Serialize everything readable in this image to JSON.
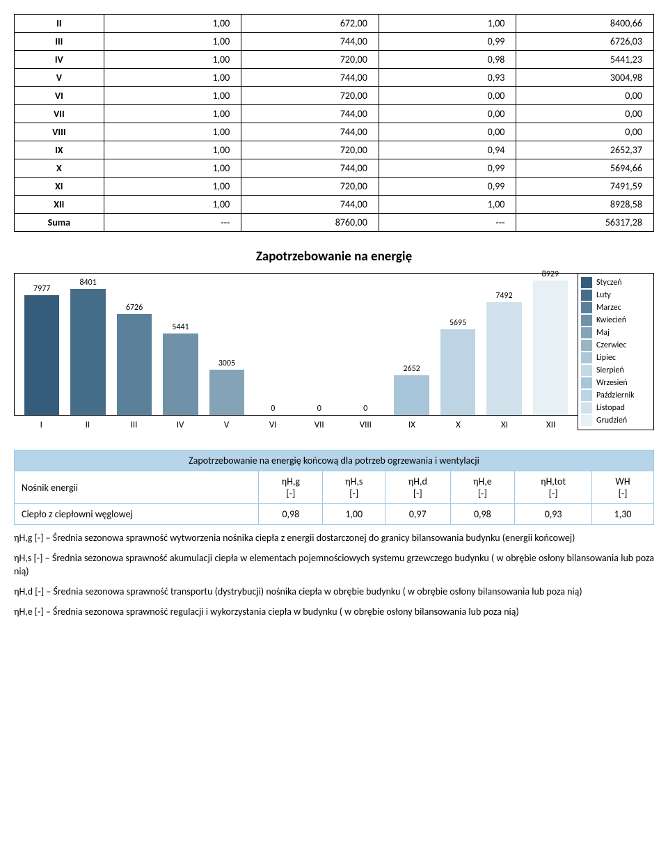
{
  "table1": {
    "rows": [
      {
        "label": "II",
        "c1": "1,00",
        "c2": "672,00",
        "c3": "1,00",
        "c4": "8400,66",
        "bold": true
      },
      {
        "label": "III",
        "c1": "1,00",
        "c2": "744,00",
        "c3": "0,99",
        "c4": "6726,03",
        "bold": true
      },
      {
        "label": "IV",
        "c1": "1,00",
        "c2": "720,00",
        "c3": "0,98",
        "c4": "5441,23",
        "bold": true
      },
      {
        "label": "V",
        "c1": "1,00",
        "c2": "744,00",
        "c3": "0,93",
        "c4": "3004,98",
        "bold": true
      },
      {
        "label": "VI",
        "c1": "1,00",
        "c2": "720,00",
        "c3": "0,00",
        "c4": "0,00",
        "bold": true
      },
      {
        "label": "VII",
        "c1": "1,00",
        "c2": "744,00",
        "c3": "0,00",
        "c4": "0,00",
        "bold": true
      },
      {
        "label": "VIII",
        "c1": "1,00",
        "c2": "744,00",
        "c3": "0,00",
        "c4": "0,00",
        "bold": true
      },
      {
        "label": "IX",
        "c1": "1,00",
        "c2": "720,00",
        "c3": "0,94",
        "c4": "2652,37",
        "bold": true
      },
      {
        "label": "X",
        "c1": "1,00",
        "c2": "744,00",
        "c3": "0,99",
        "c4": "5694,66",
        "bold": true
      },
      {
        "label": "XI",
        "c1": "1,00",
        "c2": "720,00",
        "c3": "0,99",
        "c4": "7491,59",
        "bold": true
      },
      {
        "label": "XII",
        "c1": "1,00",
        "c2": "744,00",
        "c3": "1,00",
        "c4": "8928,58",
        "bold": true
      },
      {
        "label": "Suma",
        "c1": "---",
        "c2": "8760,00",
        "c3": "---",
        "c4": "56317,28",
        "bold": true
      }
    ]
  },
  "chart": {
    "title": "Zapotrzebowanie na energię",
    "type": "bar",
    "ymax": 9400,
    "plot_bg": "#ffffff",
    "border_color": "#000000",
    "categories": [
      "I",
      "II",
      "III",
      "IV",
      "V",
      "VI",
      "VII",
      "VIII",
      "IX",
      "X",
      "XI",
      "XII"
    ],
    "values": [
      7977,
      8401,
      6726,
      5441,
      3005,
      0,
      0,
      0,
      2652,
      5695,
      7492,
      8929
    ],
    "value_labels": [
      "7977",
      "8401",
      "6726",
      "5441",
      "3005",
      "0",
      "0",
      "0",
      "2652",
      "5695",
      "7492",
      "8929"
    ],
    "bar_colors": [
      "#355c7a",
      "#466e8b",
      "#5a809a",
      "#6f92a9",
      "#84a3b7",
      "#99b5c6",
      "#aec7d5",
      "#c3d9e4",
      "#a8c6da",
      "#bcd4e3",
      "#d1e2ec",
      "#e6f0f5"
    ],
    "legend": [
      {
        "label": "Styczeń",
        "color": "#355c7a"
      },
      {
        "label": "Luty",
        "color": "#466e8b"
      },
      {
        "label": "Marzec",
        "color": "#5a809a"
      },
      {
        "label": "Kwiecień",
        "color": "#6f92a9"
      },
      {
        "label": "Maj",
        "color": "#84a3b7"
      },
      {
        "label": "Czerwiec",
        "color": "#99b5c6"
      },
      {
        "label": "Lipiec",
        "color": "#aec7d5"
      },
      {
        "label": "Sierpień",
        "color": "#c3d9e4"
      },
      {
        "label": "Wrzesień",
        "color": "#a8c6da"
      },
      {
        "label": "Październik",
        "color": "#bcd4e3"
      },
      {
        "label": "Listopad",
        "color": "#d1e2ec"
      },
      {
        "label": "Grudzień",
        "color": "#e6f0f5"
      }
    ],
    "label_fontsize": 12,
    "axis_fontsize": 13
  },
  "table2": {
    "header_bg": "#b6d4ea",
    "border_color": "#9ec8e4",
    "title": "Zapotrzebowanie na energię końcową dla potrzeb ogrzewania i wentylacji",
    "row_label": "Nośnik energii",
    "cols": [
      {
        "sym": "ηH,g",
        "unit": "[-]"
      },
      {
        "sym": "ηH,s",
        "unit": "[-]"
      },
      {
        "sym": "ηH,d",
        "unit": "[-]"
      },
      {
        "sym": "ηH,e",
        "unit": "[-]"
      },
      {
        "sym": "ηH,tot",
        "unit": "[-]"
      },
      {
        "sym": "WH",
        "unit": "[-]"
      }
    ],
    "data_row": {
      "label": "Ciepło z ciepłowni węglowej",
      "vals": [
        "0,98",
        "1,00",
        "0,97",
        "0,98",
        "0,93",
        "1,30"
      ]
    }
  },
  "defs": {
    "p1": "ηH,g [-] – Średnia sezonowa sprawność wytworzenia nośnika ciepła z energii dostarczonej do granicy bilansowania budynku (energii końcowej)",
    "p2": "ηH,s [-] – Średnia sezonowa sprawność akumulacji ciepła w elementach pojemnościowych systemu grzewczego budynku ( w obrębie osłony bilansowania lub poza nią)",
    "p3": "ηH,d [-] – Średnia sezonowa sprawność transportu (dystrybucji) nośnika ciepła w obrębie budynku ( w obrębie osłony bilansowania lub poza nią)",
    "p4": "ηH,e [-] – Średnia sezonowa sprawność regulacji i wykorzystania ciepła w budynku ( w obrębie osłony bilansowania lub poza nią)"
  }
}
